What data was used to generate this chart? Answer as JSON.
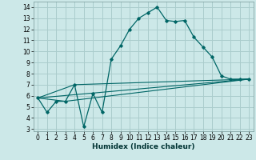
{
  "xlabel": "Humidex (Indice chaleur)",
  "bg_color": "#cce8e8",
  "grid_color": "#aacccc",
  "line_color": "#006666",
  "xlim": [
    -0.5,
    23.5
  ],
  "ylim": [
    2.8,
    14.5
  ],
  "xticks": [
    0,
    1,
    2,
    3,
    4,
    5,
    6,
    7,
    8,
    9,
    10,
    11,
    12,
    13,
    14,
    15,
    16,
    17,
    18,
    19,
    20,
    21,
    22,
    23
  ],
  "yticks": [
    3,
    4,
    5,
    6,
    7,
    8,
    9,
    10,
    11,
    12,
    13,
    14
  ],
  "line1_x": [
    0,
    1,
    2,
    3,
    4,
    5,
    6,
    7,
    8,
    9,
    10,
    11,
    12,
    13,
    14,
    15,
    16,
    17,
    18,
    19,
    20,
    21,
    22,
    23
  ],
  "line1_y": [
    5.8,
    4.5,
    5.5,
    5.5,
    7.0,
    3.2,
    6.2,
    4.5,
    9.3,
    10.5,
    12.0,
    13.0,
    13.5,
    14.0,
    12.8,
    12.7,
    12.8,
    11.3,
    10.4,
    9.5,
    7.8,
    7.5,
    7.5,
    7.5
  ],
  "line2_x": [
    0,
    23
  ],
  "line2_y": [
    5.8,
    7.5
  ],
  "line3_x": [
    0,
    4,
    23
  ],
  "line3_y": [
    5.8,
    7.0,
    7.5
  ],
  "line4_x": [
    0,
    3,
    23
  ],
  "line4_y": [
    5.8,
    5.5,
    7.5
  ],
  "tick_fontsize": 5.5,
  "xlabel_fontsize": 6.5
}
